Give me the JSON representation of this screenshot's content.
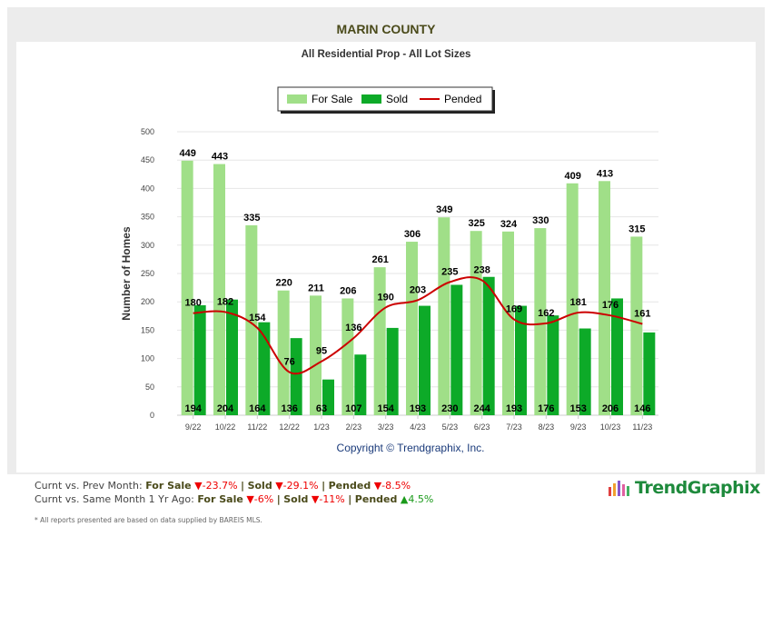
{
  "header": {
    "title": "MARIN COUNTY",
    "subtitle": "All Residential Prop - All Lot Sizes"
  },
  "chart_data": {
    "type": "bar",
    "title": "MARIN COUNTY",
    "subtitle": "All Residential Prop - All Lot Sizes",
    "ylabel": "Number of Homes",
    "xlabel": "",
    "ylim": [
      0,
      500
    ],
    "yticks": [
      0,
      50,
      100,
      150,
      200,
      250,
      300,
      350,
      400,
      450,
      500
    ],
    "grid": true,
    "legend": "top-center",
    "categories": [
      "9/22",
      "10/22",
      "11/22",
      "12/22",
      "1/23",
      "2/23",
      "3/23",
      "4/23",
      "5/23",
      "6/23",
      "7/23",
      "8/23",
      "9/23",
      "10/23",
      "11/23"
    ],
    "series": [
      {
        "name": "For Sale",
        "type": "bar",
        "color": "#a0df88",
        "values": [
          449,
          443,
          335,
          220,
          211,
          206,
          261,
          306,
          349,
          325,
          324,
          330,
          409,
          413,
          315
        ]
      },
      {
        "name": "Sold",
        "type": "bar",
        "color": "#0daa28",
        "values": [
          194,
          204,
          164,
          136,
          63,
          107,
          154,
          193,
          230,
          244,
          193,
          176,
          153,
          206,
          146
        ]
      },
      {
        "name": "Pended",
        "type": "line",
        "color": "#cc0000",
        "values": [
          180,
          182,
          154,
          76,
          95,
          136,
          190,
          203,
          235,
          238,
          169,
          162,
          181,
          176,
          161
        ]
      }
    ],
    "copyright": "Copyright © Trendgraphix, Inc."
  },
  "stats": {
    "line1": {
      "label": "Curnt vs. Prev Month:",
      "for_sale_label": "For Sale",
      "for_sale": "-23.7%",
      "sold_label": "Sold",
      "sold": "-29.1%",
      "pended_label": "Pended",
      "pended": "-8.5%"
    },
    "line2": {
      "label": "Curnt vs. Same Month 1 Yr Ago:",
      "for_sale_label": "For Sale",
      "for_sale": "-6%",
      "sold_label": "Sold",
      "sold": "-11%",
      "pended_label": "Pended",
      "pended": "4.5%"
    },
    "sep": "|",
    "note": "* All reports presented are based on data supplied by BAREIS MLS."
  },
  "logo": {
    "text": "TrendGraphix"
  }
}
